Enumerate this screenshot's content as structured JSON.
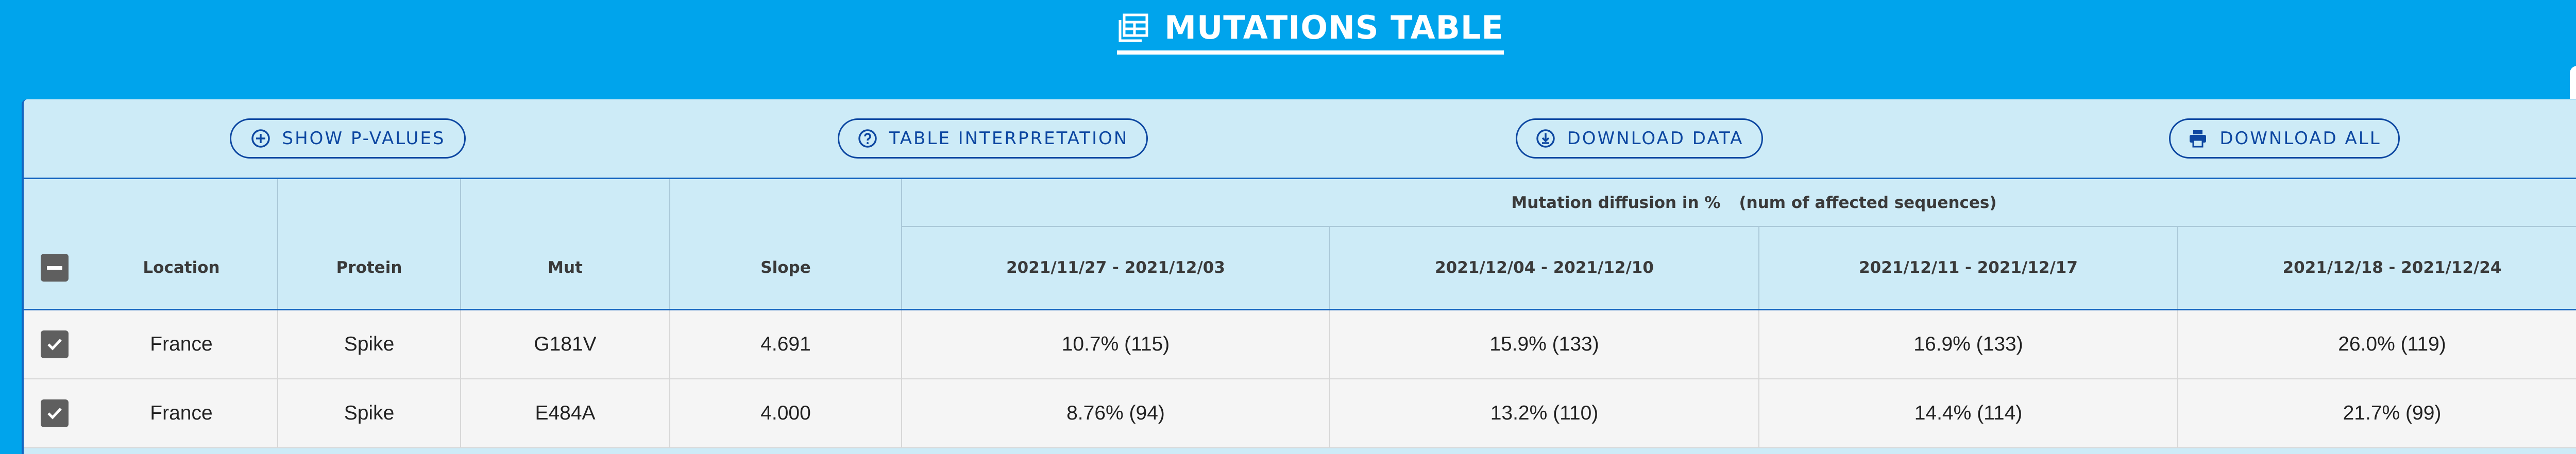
{
  "header": {
    "title": "MUTATIONS TABLE",
    "icon": "table-icon"
  },
  "toolbar": {
    "show_pvalues": "SHOW P-VALUES",
    "interpretation": "TABLE INTERPRETATION",
    "download_data": "DOWNLOAD DATA",
    "download_all": "DOWNLOAD ALL"
  },
  "table": {
    "columns": {
      "location": "Location",
      "protein": "Protein",
      "mut": "Mut",
      "slope": "Slope"
    },
    "group_header": {
      "label": "Mutation diffusion in %",
      "sub": "(num of affected sequences)"
    },
    "periods": [
      "2021/11/27 - 2021/12/03",
      "2021/12/04 - 2021/12/10",
      "2021/12/11 - 2021/12/17",
      "2021/12/18 - 2021/12/24"
    ],
    "rows": [
      {
        "checked": true,
        "location": "France",
        "protein": "Spike",
        "mut": "G181V",
        "slope": "4.691",
        "values": [
          "10.7% (115)",
          "15.9% (133)",
          "16.9% (133)",
          "26.0% (119)"
        ]
      },
      {
        "checked": true,
        "location": "France",
        "protein": "Spike",
        "mut": "E484A",
        "slope": "4.000",
        "values": [
          "8.76% (94)",
          "13.2% (110)",
          "14.4% (114)",
          "21.7% (99)"
        ]
      }
    ]
  },
  "colors": {
    "background": "#00A4EC",
    "card": "#CDEBF7",
    "accent": "#0D47A1",
    "row": "#F5F5F5"
  }
}
